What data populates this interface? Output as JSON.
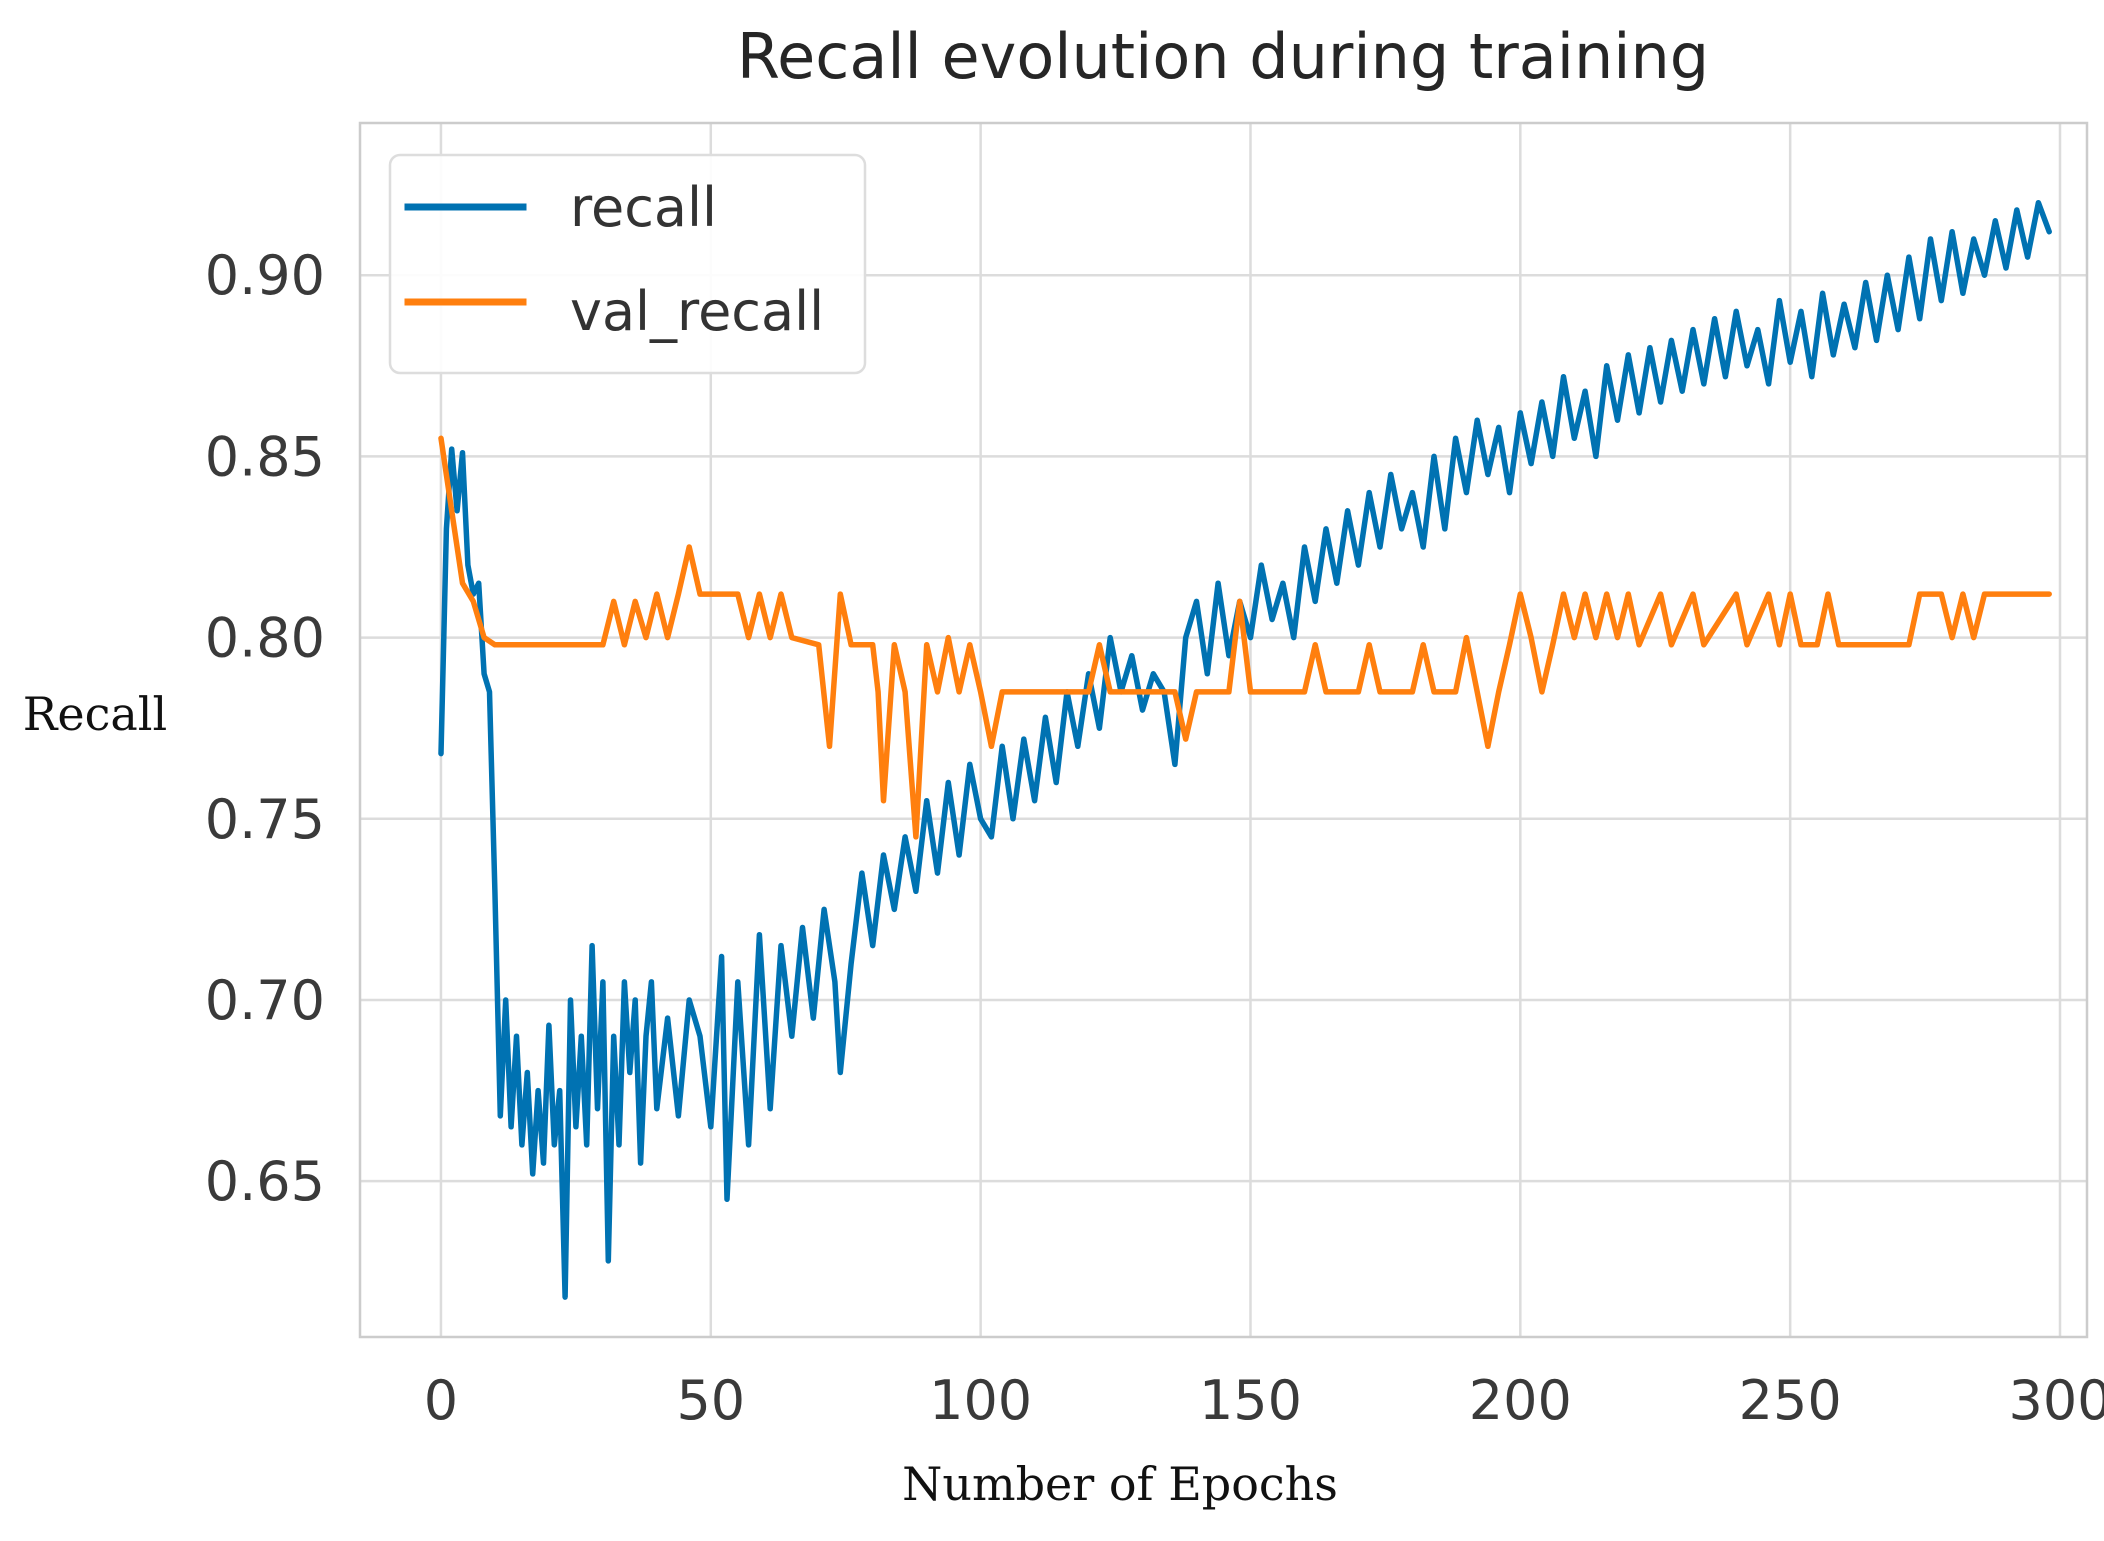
{
  "chart_data": {
    "type": "line",
    "title": "Recall evolution during training",
    "xlabel": "Number of Epochs",
    "ylabel": "Recall",
    "xlim": [
      -15,
      305
    ],
    "ylim": [
      0.607,
      0.942
    ],
    "xticks": [
      0,
      50,
      100,
      150,
      200,
      250,
      300
    ],
    "xtick_labels": [
      "0",
      "50",
      "100",
      "150",
      "200",
      "250",
      "300"
    ],
    "yticks": [
      0.65,
      0.7,
      0.75,
      0.8,
      0.85,
      0.9
    ],
    "ytick_labels": [
      "0.65",
      "0.70",
      "0.75",
      "0.80",
      "0.85",
      "0.90"
    ],
    "grid": true,
    "legend_position": "top-left",
    "series": [
      {
        "name": "recall",
        "color": "#0072b2",
        "points": [
          [
            0,
            0.768
          ],
          [
            1,
            0.83
          ],
          [
            2,
            0.852
          ],
          [
            3,
            0.835
          ],
          [
            4,
            0.851
          ],
          [
            5,
            0.82
          ],
          [
            6,
            0.812
          ],
          [
            7,
            0.815
          ],
          [
            8,
            0.79
          ],
          [
            9,
            0.785
          ],
          [
            10,
            0.73
          ],
          [
            11,
            0.668
          ],
          [
            12,
            0.7
          ],
          [
            13,
            0.665
          ],
          [
            14,
            0.69
          ],
          [
            15,
            0.66
          ],
          [
            16,
            0.68
          ],
          [
            17,
            0.652
          ],
          [
            18,
            0.675
          ],
          [
            19,
            0.655
          ],
          [
            20,
            0.693
          ],
          [
            21,
            0.66
          ],
          [
            22,
            0.675
          ],
          [
            23,
            0.618
          ],
          [
            24,
            0.7
          ],
          [
            25,
            0.665
          ],
          [
            26,
            0.69
          ],
          [
            27,
            0.66
          ],
          [
            28,
            0.715
          ],
          [
            29,
            0.67
          ],
          [
            30,
            0.705
          ],
          [
            31,
            0.628
          ],
          [
            32,
            0.69
          ],
          [
            33,
            0.66
          ],
          [
            34,
            0.705
          ],
          [
            35,
            0.68
          ],
          [
            36,
            0.7
          ],
          [
            37,
            0.655
          ],
          [
            38,
            0.69
          ],
          [
            39,
            0.705
          ],
          [
            40,
            0.67
          ],
          [
            42,
            0.695
          ],
          [
            44,
            0.668
          ],
          [
            46,
            0.7
          ],
          [
            48,
            0.69
          ],
          [
            50,
            0.665
          ],
          [
            52,
            0.712
          ],
          [
            53,
            0.645
          ],
          [
            55,
            0.705
          ],
          [
            57,
            0.66
          ],
          [
            59,
            0.718
          ],
          [
            61,
            0.67
          ],
          [
            63,
            0.715
          ],
          [
            65,
            0.69
          ],
          [
            67,
            0.72
          ],
          [
            69,
            0.695
          ],
          [
            71,
            0.725
          ],
          [
            73,
            0.705
          ],
          [
            74,
            0.68
          ],
          [
            76,
            0.71
          ],
          [
            78,
            0.735
          ],
          [
            80,
            0.715
          ],
          [
            82,
            0.74
          ],
          [
            84,
            0.725
          ],
          [
            86,
            0.745
          ],
          [
            88,
            0.73
          ],
          [
            90,
            0.755
          ],
          [
            92,
            0.735
          ],
          [
            94,
            0.76
          ],
          [
            96,
            0.74
          ],
          [
            98,
            0.765
          ],
          [
            100,
            0.75
          ],
          [
            102,
            0.745
          ],
          [
            104,
            0.77
          ],
          [
            106,
            0.75
          ],
          [
            108,
            0.772
          ],
          [
            110,
            0.755
          ],
          [
            112,
            0.778
          ],
          [
            114,
            0.76
          ],
          [
            116,
            0.785
          ],
          [
            118,
            0.77
          ],
          [
            120,
            0.79
          ],
          [
            122,
            0.775
          ],
          [
            124,
            0.8
          ],
          [
            126,
            0.785
          ],
          [
            128,
            0.795
          ],
          [
            130,
            0.78
          ],
          [
            132,
            0.79
          ],
          [
            134,
            0.785
          ],
          [
            136,
            0.765
          ],
          [
            138,
            0.8
          ],
          [
            140,
            0.81
          ],
          [
            142,
            0.79
          ],
          [
            144,
            0.815
          ],
          [
            146,
            0.795
          ],
          [
            148,
            0.81
          ],
          [
            150,
            0.8
          ],
          [
            152,
            0.82
          ],
          [
            154,
            0.805
          ],
          [
            156,
            0.815
          ],
          [
            158,
            0.8
          ],
          [
            160,
            0.825
          ],
          [
            162,
            0.81
          ],
          [
            164,
            0.83
          ],
          [
            166,
            0.815
          ],
          [
            168,
            0.835
          ],
          [
            170,
            0.82
          ],
          [
            172,
            0.84
          ],
          [
            174,
            0.825
          ],
          [
            176,
            0.845
          ],
          [
            178,
            0.83
          ],
          [
            180,
            0.84
          ],
          [
            182,
            0.825
          ],
          [
            184,
            0.85
          ],
          [
            186,
            0.83
          ],
          [
            188,
            0.855
          ],
          [
            190,
            0.84
          ],
          [
            192,
            0.86
          ],
          [
            194,
            0.845
          ],
          [
            196,
            0.858
          ],
          [
            198,
            0.84
          ],
          [
            200,
            0.862
          ],
          [
            202,
            0.848
          ],
          [
            204,
            0.865
          ],
          [
            206,
            0.85
          ],
          [
            208,
            0.872
          ],
          [
            210,
            0.855
          ],
          [
            212,
            0.868
          ],
          [
            214,
            0.85
          ],
          [
            216,
            0.875
          ],
          [
            218,
            0.86
          ],
          [
            220,
            0.878
          ],
          [
            222,
            0.862
          ],
          [
            224,
            0.88
          ],
          [
            226,
            0.865
          ],
          [
            228,
            0.882
          ],
          [
            230,
            0.868
          ],
          [
            232,
            0.885
          ],
          [
            234,
            0.87
          ],
          [
            236,
            0.888
          ],
          [
            238,
            0.872
          ],
          [
            240,
            0.89
          ],
          [
            242,
            0.875
          ],
          [
            244,
            0.885
          ],
          [
            246,
            0.87
          ],
          [
            248,
            0.893
          ],
          [
            250,
            0.876
          ],
          [
            252,
            0.89
          ],
          [
            254,
            0.872
          ],
          [
            256,
            0.895
          ],
          [
            258,
            0.878
          ],
          [
            260,
            0.892
          ],
          [
            262,
            0.88
          ],
          [
            264,
            0.898
          ],
          [
            266,
            0.882
          ],
          [
            268,
            0.9
          ],
          [
            270,
            0.885
          ],
          [
            272,
            0.905
          ],
          [
            274,
            0.888
          ],
          [
            276,
            0.91
          ],
          [
            278,
            0.893
          ],
          [
            280,
            0.912
          ],
          [
            282,
            0.895
          ],
          [
            284,
            0.91
          ],
          [
            286,
            0.9
          ],
          [
            288,
            0.915
          ],
          [
            290,
            0.902
          ],
          [
            292,
            0.918
          ],
          [
            294,
            0.905
          ],
          [
            296,
            0.92
          ],
          [
            298,
            0.912
          ]
        ]
      },
      {
        "name": "val_recall",
        "color": "#ff7f0e",
        "points": [
          [
            0,
            0.855
          ],
          [
            2,
            0.835
          ],
          [
            4,
            0.815
          ],
          [
            6,
            0.81
          ],
          [
            8,
            0.8
          ],
          [
            10,
            0.798
          ],
          [
            20,
            0.798
          ],
          [
            30,
            0.798
          ],
          [
            32,
            0.81
          ],
          [
            34,
            0.798
          ],
          [
            36,
            0.81
          ],
          [
            38,
            0.8
          ],
          [
            40,
            0.812
          ],
          [
            42,
            0.8
          ],
          [
            44,
            0.812
          ],
          [
            46,
            0.825
          ],
          [
            48,
            0.812
          ],
          [
            55,
            0.812
          ],
          [
            57,
            0.8
          ],
          [
            59,
            0.812
          ],
          [
            61,
            0.8
          ],
          [
            63,
            0.812
          ],
          [
            65,
            0.8
          ],
          [
            70,
            0.798
          ],
          [
            72,
            0.77
          ],
          [
            74,
            0.812
          ],
          [
            76,
            0.798
          ],
          [
            80,
            0.798
          ],
          [
            81,
            0.785
          ],
          [
            82,
            0.755
          ],
          [
            84,
            0.798
          ],
          [
            86,
            0.785
          ],
          [
            88,
            0.745
          ],
          [
            90,
            0.798
          ],
          [
            92,
            0.785
          ],
          [
            94,
            0.8
          ],
          [
            96,
            0.785
          ],
          [
            98,
            0.798
          ],
          [
            100,
            0.785
          ],
          [
            102,
            0.77
          ],
          [
            104,
            0.785
          ],
          [
            110,
            0.785
          ],
          [
            120,
            0.785
          ],
          [
            122,
            0.798
          ],
          [
            124,
            0.785
          ],
          [
            130,
            0.785
          ],
          [
            136,
            0.785
          ],
          [
            138,
            0.772
          ],
          [
            140,
            0.785
          ],
          [
            146,
            0.785
          ],
          [
            148,
            0.81
          ],
          [
            150,
            0.785
          ],
          [
            160,
            0.785
          ],
          [
            162,
            0.798
          ],
          [
            164,
            0.785
          ],
          [
            170,
            0.785
          ],
          [
            172,
            0.798
          ],
          [
            174,
            0.785
          ],
          [
            180,
            0.785
          ],
          [
            182,
            0.798
          ],
          [
            184,
            0.785
          ],
          [
            188,
            0.785
          ],
          [
            190,
            0.8
          ],
          [
            192,
            0.785
          ],
          [
            194,
            0.77
          ],
          [
            196,
            0.785
          ],
          [
            198,
            0.798
          ],
          [
            200,
            0.812
          ],
          [
            202,
            0.8
          ],
          [
            204,
            0.785
          ],
          [
            206,
            0.798
          ],
          [
            208,
            0.812
          ],
          [
            210,
            0.8
          ],
          [
            212,
            0.812
          ],
          [
            214,
            0.8
          ],
          [
            216,
            0.812
          ],
          [
            218,
            0.8
          ],
          [
            220,
            0.812
          ],
          [
            222,
            0.798
          ],
          [
            226,
            0.812
          ],
          [
            228,
            0.798
          ],
          [
            232,
            0.812
          ],
          [
            234,
            0.798
          ],
          [
            240,
            0.812
          ],
          [
            242,
            0.798
          ],
          [
            246,
            0.812
          ],
          [
            248,
            0.798
          ],
          [
            250,
            0.812
          ],
          [
            252,
            0.798
          ],
          [
            255,
            0.798
          ],
          [
            257,
            0.812
          ],
          [
            259,
            0.798
          ],
          [
            262,
            0.798
          ],
          [
            270,
            0.798
          ],
          [
            272,
            0.798
          ],
          [
            274,
            0.812
          ],
          [
            278,
            0.812
          ],
          [
            280,
            0.8
          ],
          [
            282,
            0.812
          ],
          [
            284,
            0.8
          ],
          [
            286,
            0.812
          ],
          [
            290,
            0.812
          ],
          [
            298,
            0.812
          ]
        ]
      }
    ]
  }
}
